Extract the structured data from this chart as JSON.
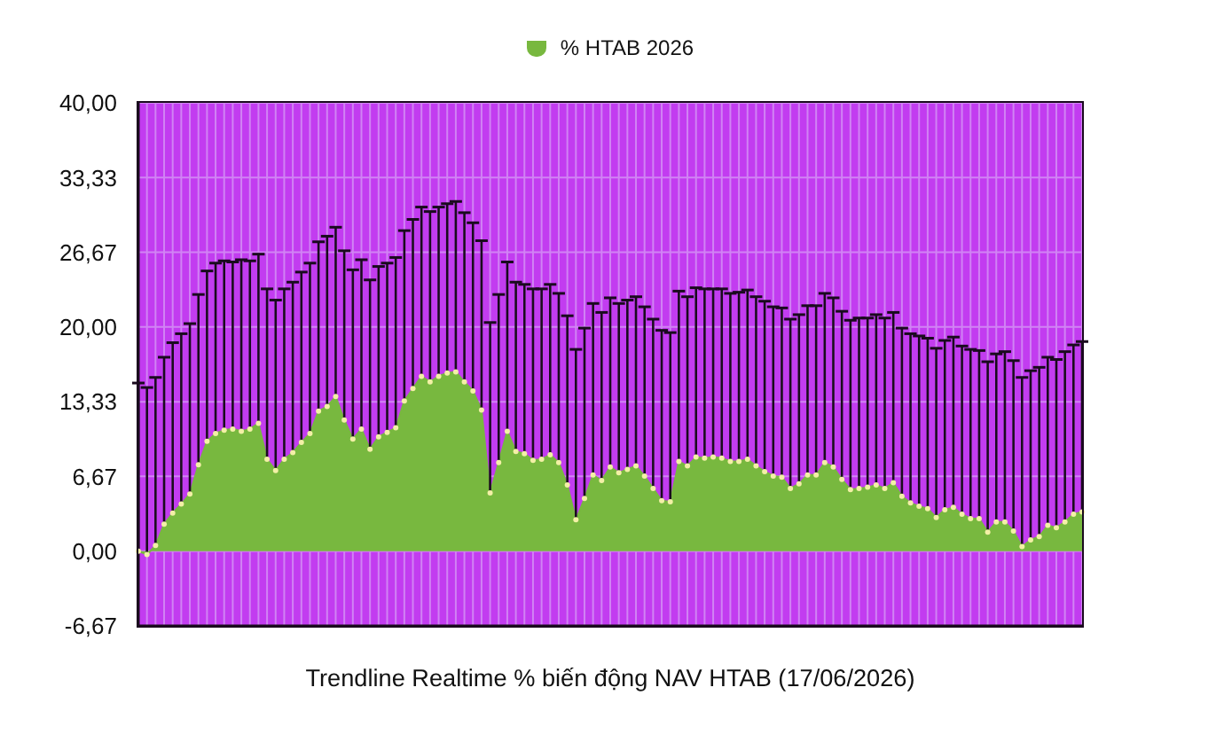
{
  "chart_data": {
    "type": "area",
    "xlabel": "Trendline Realtime % biến động NAV HTAB (17/06/2026)",
    "categories": [
      null,
      null,
      null,
      null,
      null,
      null,
      null,
      null,
      null,
      null,
      null,
      null,
      null,
      null,
      null,
      null,
      null,
      null,
      null,
      null,
      null,
      null,
      null,
      null,
      null,
      null,
      null,
      null,
      null,
      null,
      null,
      null,
      null,
      null,
      null,
      null,
      null,
      null,
      null,
      null,
      null,
      null,
      null,
      null,
      null,
      null,
      null,
      null,
      null,
      null,
      null,
      null,
      null,
      null,
      null,
      null,
      null,
      null,
      null,
      null,
      null,
      null,
      null,
      null,
      null,
      null,
      null,
      null,
      null,
      null,
      null,
      null,
      null,
      null,
      null,
      null,
      null,
      null,
      null,
      null,
      null,
      null,
      null,
      null,
      null,
      null,
      null,
      null,
      null,
      null,
      null,
      null,
      null,
      null,
      null,
      null,
      null,
      null,
      null,
      null,
      null,
      null,
      null,
      null,
      null,
      null,
      null,
      null,
      null,
      null,
      null
    ],
    "series": [
      {
        "name": "% HTAB 2026",
        "color": "#78b83f",
        "values": [
          0.0,
          -0.3,
          0.5,
          2.4,
          3.4,
          4.2,
          5.1,
          7.7,
          9.8,
          10.5,
          10.8,
          10.9,
          10.7,
          10.9,
          11.4,
          8.2,
          7.2,
          8.2,
          8.8,
          9.7,
          10.5,
          12.5,
          12.9,
          13.8,
          11.7,
          10.0,
          10.9,
          9.1,
          10.2,
          10.6,
          11.0,
          13.4,
          14.5,
          15.6,
          15.1,
          15.6,
          15.9,
          16.0,
          15.1,
          14.3,
          12.6,
          5.2,
          7.9,
          10.7,
          8.9,
          8.7,
          8.1,
          8.2,
          8.6,
          7.9,
          5.9,
          2.8,
          4.7,
          6.8,
          6.3,
          7.5,
          7.0,
          7.3,
          7.6,
          6.7,
          5.6,
          4.5,
          4.4,
          8.0,
          7.6,
          8.4,
          8.3,
          8.4,
          8.3,
          8.0,
          8.0,
          8.2,
          7.6,
          7.1,
          6.7,
          6.6,
          5.6,
          6.0,
          6.8,
          6.8,
          7.9,
          7.5,
          6.4,
          5.5,
          5.6,
          5.7,
          5.9,
          5.6,
          6.1,
          4.9,
          4.3,
          4.0,
          3.8,
          3.0,
          3.7,
          3.9,
          3.3,
          2.9,
          2.9,
          1.7,
          2.6,
          2.6,
          1.8,
          0.4,
          1.0,
          1.3,
          2.3,
          2.1,
          2.6,
          3.3,
          3.5
        ],
        "errors": [
          [
            0.0,
            15.0
          ],
          [
            -0.3,
            14.6
          ],
          [
            0.5,
            15.5
          ],
          [
            2.4,
            17.3
          ],
          [
            3.4,
            18.6
          ],
          [
            4.2,
            19.4
          ],
          [
            5.1,
            20.3
          ],
          [
            7.7,
            22.9
          ],
          [
            9.8,
            25.0
          ],
          [
            10.5,
            25.7
          ],
          [
            10.8,
            25.9
          ],
          [
            10.9,
            25.8
          ],
          [
            10.7,
            26.0
          ],
          [
            10.9,
            25.9
          ],
          [
            11.4,
            26.5
          ],
          [
            8.2,
            23.4
          ],
          [
            7.2,
            22.4
          ],
          [
            8.2,
            23.4
          ],
          [
            8.8,
            24.0
          ],
          [
            9.7,
            24.9
          ],
          [
            10.5,
            25.7
          ],
          [
            12.5,
            27.6
          ],
          [
            12.9,
            28.1
          ],
          [
            13.8,
            28.9
          ],
          [
            11.7,
            26.8
          ],
          [
            10.0,
            25.1
          ],
          [
            10.9,
            26.0
          ],
          [
            9.1,
            24.2
          ],
          [
            10.2,
            25.4
          ],
          [
            10.6,
            25.7
          ],
          [
            11.0,
            26.2
          ],
          [
            13.4,
            28.6
          ],
          [
            14.5,
            29.6
          ],
          [
            15.6,
            30.7
          ],
          [
            15.1,
            30.3
          ],
          [
            15.6,
            30.7
          ],
          [
            15.9,
            31.0
          ],
          [
            16.0,
            31.2
          ],
          [
            15.1,
            30.2
          ],
          [
            14.3,
            29.3
          ],
          [
            12.6,
            27.7
          ],
          [
            5.2,
            20.4
          ],
          [
            7.9,
            22.9
          ],
          [
            10.7,
            25.8
          ],
          [
            8.9,
            24.0
          ],
          [
            8.7,
            23.8
          ],
          [
            8.1,
            23.4
          ],
          [
            8.2,
            23.4
          ],
          [
            8.6,
            23.8
          ],
          [
            7.9,
            23.0
          ],
          [
            5.9,
            21.0
          ],
          [
            2.8,
            18.0
          ],
          [
            4.7,
            19.9
          ],
          [
            6.8,
            22.1
          ],
          [
            6.3,
            21.3
          ],
          [
            7.5,
            22.6
          ],
          [
            7.0,
            22.1
          ],
          [
            7.3,
            22.4
          ],
          [
            7.6,
            22.7
          ],
          [
            6.7,
            21.8
          ],
          [
            5.6,
            20.7
          ],
          [
            4.5,
            19.7
          ],
          [
            4.4,
            19.5
          ],
          [
            8.0,
            23.2
          ],
          [
            7.6,
            22.7
          ],
          [
            8.4,
            23.5
          ],
          [
            8.3,
            23.4
          ],
          [
            8.4,
            23.4
          ],
          [
            8.3,
            23.4
          ],
          [
            8.0,
            23.0
          ],
          [
            8.0,
            23.1
          ],
          [
            8.2,
            23.3
          ],
          [
            7.6,
            22.7
          ],
          [
            7.1,
            22.3
          ],
          [
            6.7,
            21.8
          ],
          [
            6.6,
            21.7
          ],
          [
            5.6,
            20.7
          ],
          [
            6.0,
            21.1
          ],
          [
            6.8,
            21.9
          ],
          [
            6.8,
            21.9
          ],
          [
            7.9,
            23.0
          ],
          [
            7.5,
            22.6
          ],
          [
            6.4,
            21.4
          ],
          [
            5.5,
            20.6
          ],
          [
            5.6,
            20.8
          ],
          [
            5.7,
            20.8
          ],
          [
            5.9,
            21.1
          ],
          [
            5.6,
            20.8
          ],
          [
            6.1,
            21.3
          ],
          [
            4.9,
            19.9
          ],
          [
            4.3,
            19.4
          ],
          [
            4.0,
            19.2
          ],
          [
            3.8,
            19.0
          ],
          [
            3.0,
            18.1
          ],
          [
            3.7,
            18.8
          ],
          [
            3.9,
            19.1
          ],
          [
            3.3,
            18.3
          ],
          [
            2.9,
            18.0
          ],
          [
            2.9,
            17.9
          ],
          [
            1.7,
            16.9
          ],
          [
            2.6,
            17.6
          ],
          [
            2.6,
            17.8
          ],
          [
            1.8,
            17.0
          ],
          [
            0.4,
            15.5
          ],
          [
            1.0,
            16.1
          ],
          [
            1.3,
            16.4
          ],
          [
            2.3,
            17.3
          ],
          [
            2.1,
            17.1
          ],
          [
            2.6,
            17.8
          ],
          [
            3.3,
            18.4
          ],
          [
            3.5,
            18.7
          ]
        ]
      }
    ],
    "ylim": [
      -6.67,
      40
    ],
    "yticks": [
      {
        "value": -6.67,
        "label": "-6,67"
      },
      {
        "value": 0,
        "label": "0,00"
      },
      {
        "value": 6.67,
        "label": "6,67"
      },
      {
        "value": 13.33,
        "label": "13,33"
      },
      {
        "value": 20,
        "label": "20,00"
      },
      {
        "value": 26.67,
        "label": "26,67"
      },
      {
        "value": 33.33,
        "label": "33,33"
      },
      {
        "value": 40,
        "label": "40,00"
      }
    ],
    "grid": true,
    "legend": "top",
    "tick_labels": "y",
    "marker": "circle"
  }
}
